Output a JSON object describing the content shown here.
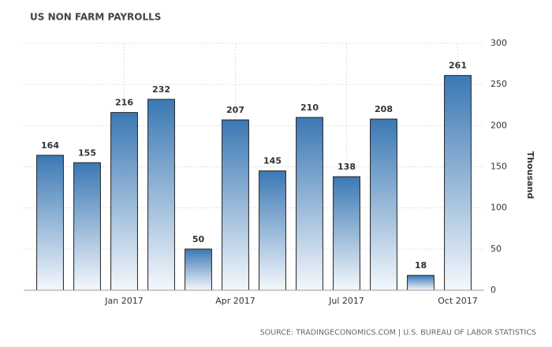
{
  "chart_data": {
    "type": "bar",
    "title": "US NON FARM PAYROLLS",
    "categories": [
      null,
      null,
      "Jan 2017",
      null,
      null,
      "Apr 2017",
      null,
      null,
      "Jul 2017",
      null,
      null,
      "Oct 2017"
    ],
    "values": [
      164,
      155,
      216,
      232,
      50,
      207,
      145,
      210,
      138,
      208,
      18,
      261
    ],
    "color": "#3b78b4",
    "ylim": [
      0,
      300
    ],
    "yticks": [
      0,
      50,
      100,
      150,
      200,
      250,
      300
    ],
    "grid": true,
    "y_axis_label": "Thousand",
    "source": "SOURCE: TRADINGECONOMICS.COM | U.S. BUREAU OF LABOR STATISTICS"
  }
}
